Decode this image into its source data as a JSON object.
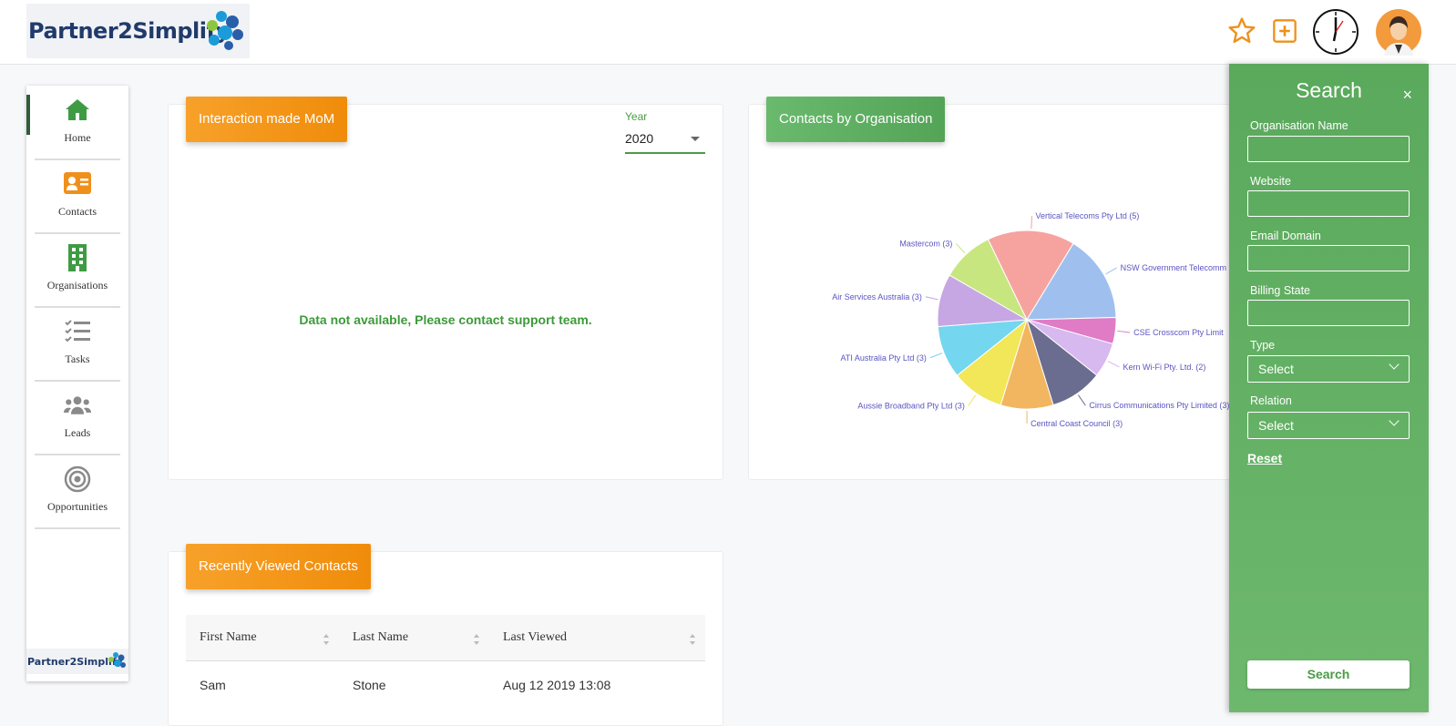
{
  "brand": {
    "name": "Partner2Simplify"
  },
  "nav": [
    {
      "label": "Home",
      "icon": "home-icon",
      "active": true
    },
    {
      "label": "Contacts",
      "icon": "contact-card-icon"
    },
    {
      "label": "Organisations",
      "icon": "building-icon"
    },
    {
      "label": "Tasks",
      "icon": "checklist-icon"
    },
    {
      "label": "Leads",
      "icon": "users-group-icon"
    },
    {
      "label": "Opportunities",
      "icon": "target-icon"
    }
  ],
  "interaction_card": {
    "title": "Interaction made MoM",
    "year_label": "Year",
    "year_value": "2020",
    "message": "Data not available, Please contact support team."
  },
  "org_card": {
    "title": "Contacts by Organisation"
  },
  "chart_data": {
    "type": "pie",
    "slices": [
      {
        "label": "Vertical Telecoms Pty Ltd (5)",
        "value": 5,
        "color": "#f6a3a0"
      },
      {
        "label": "NSW Government Telecomm",
        "value": 5,
        "color": "#9fc0ee"
      },
      {
        "label": "CSE Crosscom Pty Limit",
        "value": 1.5,
        "color": "#e07bc6"
      },
      {
        "label": "Kern Wi-Fi Pty. Ltd. (2)",
        "value": 2,
        "color": "#d7b8ef"
      },
      {
        "label": "Cirrus Communications Pty Limited (3)",
        "value": 3,
        "color": "#6a6d8f"
      },
      {
        "label": "Central Coast Council (3)",
        "value": 3,
        "color": "#f2b660"
      },
      {
        "label": "Aussie Broadband Pty Ltd (3)",
        "value": 3,
        "color": "#f1e758"
      },
      {
        "label": "ATI Australia Pty Ltd (3)",
        "value": 3,
        "color": "#74d6ef"
      },
      {
        "label": "Air Services Australia (3)",
        "value": 3,
        "color": "#c6a6e3"
      },
      {
        "label": "Mastercom (3)",
        "value": 3,
        "color": "#c8e680"
      }
    ]
  },
  "recent_card": {
    "title": "Recently Viewed Contacts",
    "columns": [
      "First Name",
      "Last Name",
      "Last Viewed"
    ],
    "rows": [
      {
        "first": "Sam",
        "last": "Stone",
        "viewed": "Aug 12 2019 13:08"
      }
    ]
  },
  "search_panel": {
    "title": "Search",
    "close": "×",
    "fields": {
      "org_name": "Organisation Name",
      "website": "Website",
      "email_domain": "Email Domain",
      "billing_state": "Billing State",
      "type": "Type",
      "relation": "Relation"
    },
    "type_value": "Select",
    "relation_value": "Select",
    "reset": "Reset",
    "search": "Search"
  },
  "colors": {
    "green": "#5aa95c",
    "orange": "#f39a1c",
    "navy": "#203a6b"
  }
}
